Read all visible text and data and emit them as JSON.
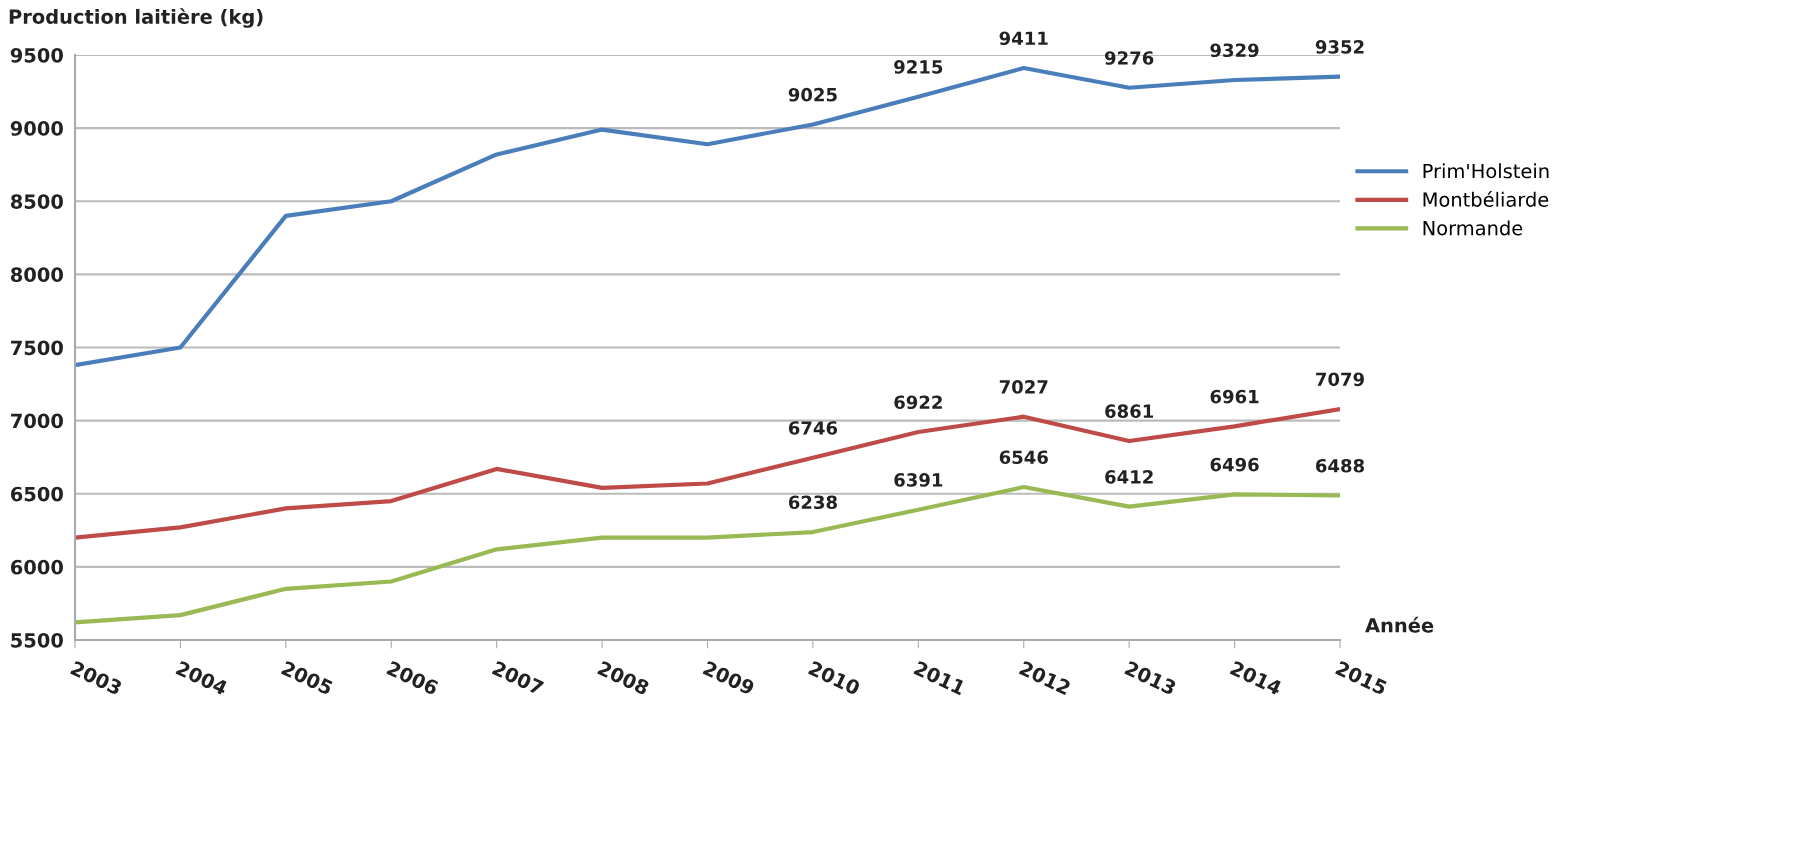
{
  "chart_data": {
    "type": "line",
    "ylabel": "Production laitière (kg)",
    "xlabel": "Année",
    "categories": [
      "2003",
      "2004",
      "2005",
      "2006",
      "2007",
      "2008",
      "2009",
      "2010",
      "2011",
      "2012",
      "2013",
      "2014",
      "2015"
    ],
    "series": [
      {
        "name": "Prim'Holstein",
        "color": "#4a7ebb",
        "values": [
          7380,
          7500,
          8400,
          8500,
          8820,
          8990,
          8890,
          9025,
          9215,
          9411,
          9276,
          9329,
          9352
        ],
        "value_labels": [
          null,
          null,
          null,
          null,
          null,
          null,
          null,
          "9025",
          "9215",
          "9411",
          "9276",
          "9329",
          "9352"
        ]
      },
      {
        "name": "Montbéliarde",
        "color": "#be4b48",
        "values": [
          6200,
          6270,
          6400,
          6450,
          6670,
          6540,
          6570,
          6746,
          6922,
          7027,
          6861,
          6961,
          7079
        ],
        "value_labels": [
          null,
          null,
          null,
          null,
          null,
          null,
          null,
          "6746",
          "6922",
          "7027",
          "6861",
          "6961",
          "7079"
        ]
      },
      {
        "name": "Normande",
        "color": "#98b954",
        "values": [
          5620,
          5670,
          5850,
          5900,
          6120,
          6200,
          6200,
          6238,
          6391,
          6546,
          6412,
          6496,
          6488
        ],
        "value_labels": [
          null,
          null,
          null,
          null,
          null,
          null,
          null,
          "6238",
          "6391",
          "6546",
          "6412",
          "6496",
          "6488"
        ]
      }
    ],
    "ylim": [
      5500,
      9500
    ],
    "yticks": [
      5500,
      6000,
      6500,
      7000,
      7500,
      8000,
      8500,
      9000,
      9500
    ],
    "grid": "y",
    "legend": "right",
    "marker": "none",
    "line_style": "solid"
  }
}
